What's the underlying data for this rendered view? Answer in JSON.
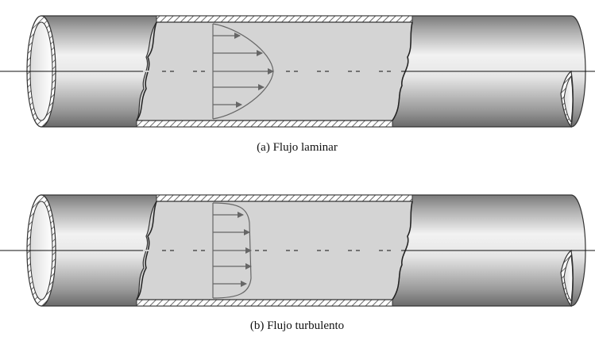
{
  "figures": [
    {
      "id": "laminar",
      "caption": "(a) Flujo laminar",
      "profile": "laminar",
      "arrow_count": 6
    },
    {
      "id": "turbulent",
      "caption": "(b) Flujo turbulento",
      "profile": "turbulent",
      "arrow_count": 6
    }
  ],
  "colors": {
    "pipe_dark": "#6f6f6f",
    "pipe_light": "#f4f4f4",
    "fluid": "#d3d3d3",
    "outline": "#333333",
    "arrow": "#666666",
    "hatch": "#444444"
  }
}
